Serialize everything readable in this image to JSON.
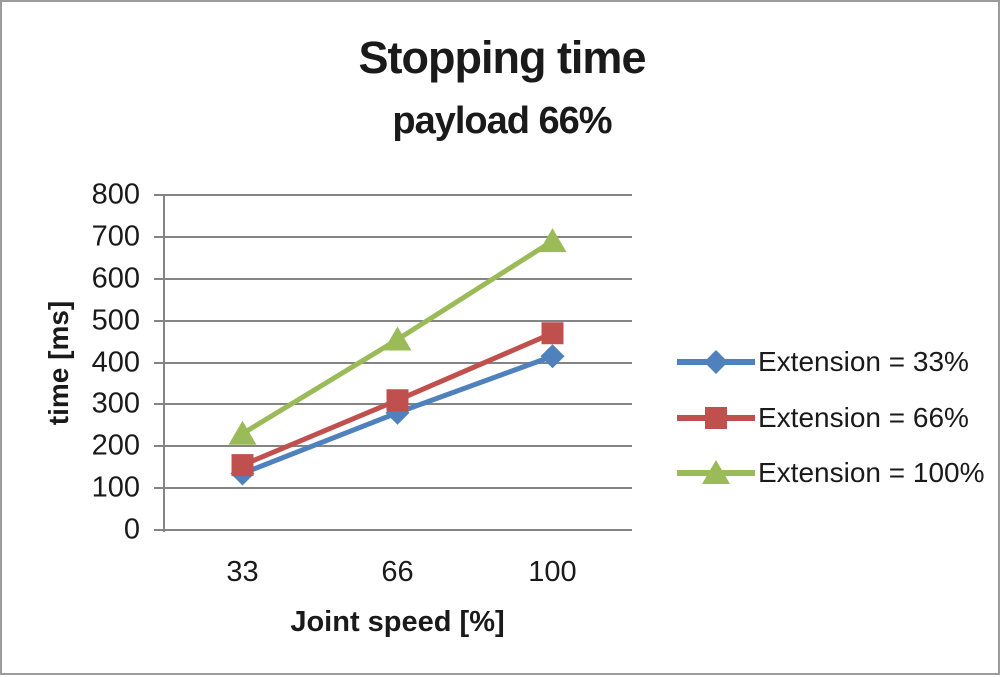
{
  "title": "Stopping time",
  "subtitle": "payload 66%",
  "chart_data": {
    "type": "line",
    "title": "Stopping time",
    "subtitle": "payload 66%",
    "xlabel": "Joint speed [%]",
    "ylabel": "time [ms]",
    "categories": [
      "33",
      "66",
      "100"
    ],
    "x": [
      33,
      66,
      100
    ],
    "series": [
      {
        "name": "Extension = 33%",
        "marker": "diamond",
        "color": "#4F81BD",
        "values": [
          135,
          280,
          415
        ]
      },
      {
        "name": "Extension = 66%",
        "marker": "square",
        "color": "#C0504D",
        "values": [
          155,
          310,
          470
        ]
      },
      {
        "name": "Extension = 100%",
        "marker": "triangle",
        "color": "#9BBB59",
        "values": [
          230,
          455,
          690
        ]
      }
    ],
    "ylim": [
      0,
      800
    ],
    "ytick_step": 100,
    "yticks": [
      0,
      100,
      200,
      300,
      400,
      500,
      600,
      700,
      800
    ],
    "grid": true,
    "gridline_color": "#848484",
    "axis_line_color": "#848484",
    "legend_position": "right",
    "text_color": "#1a1a1a",
    "background_color": "#ffffff"
  }
}
